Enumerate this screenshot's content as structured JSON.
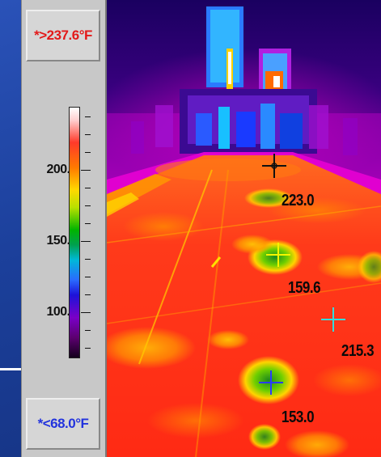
{
  "scale": {
    "max_label": "*>237.6°F",
    "min_label": "*<68.0°F",
    "ticks": [
      {
        "value": 200,
        "label": "200.0"
      },
      {
        "value": 150,
        "label": "150.0"
      },
      {
        "value": 100,
        "label": "100.0"
      }
    ],
    "colors": {
      "max_text": "#e31919",
      "min_text": "#2233dd"
    }
  },
  "thermal_image": {
    "markers": [
      {
        "label": "223.0",
        "color": "#111111",
        "icon": "crosshair-icon"
      },
      {
        "label": "159.6",
        "color": "#f5f500",
        "icon": "crosshair-icon"
      },
      {
        "label": "215.3",
        "color": "#33dddd",
        "icon": "crosshair-icon"
      },
      {
        "label": "153.0",
        "color": "#2a3cff",
        "icon": "crosshair-icon"
      }
    ]
  }
}
